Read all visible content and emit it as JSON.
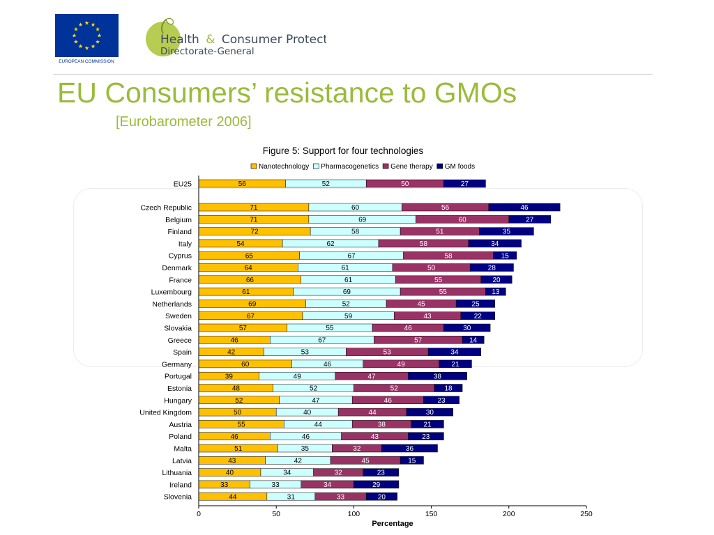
{
  "header": {
    "eu_logo_text": "EUROPEAN COMMISSION",
    "dg_line1_a": "Health",
    "dg_line1_b": "&",
    "dg_line1_c": "Consumer Protection",
    "dg_line2": "Directorate-General"
  },
  "slide": {
    "title": "EU Consumers’ resistance to GMOs",
    "subtitle": "[Eurobarometer 2006]"
  },
  "colors": {
    "title": "#9bbb3b",
    "nanotechnology": "#ffc000",
    "pharmacogenetics": "#ccffff",
    "gene_therapy": "#993366",
    "gm_foods": "#000080"
  },
  "chart_data": {
    "type": "bar",
    "orientation": "horizontal",
    "stacked": true,
    "title": "Figure 5: Support for four technologies",
    "xlabel": "Percentage",
    "ylabel": "",
    "xlim": [
      0,
      250
    ],
    "xticks": [
      0,
      50,
      100,
      150,
      200,
      250
    ],
    "grid": false,
    "legend_position": "top",
    "categories": [
      "EU25",
      "Czech Republic",
      "Belgium",
      "Finland",
      "Italy",
      "Cyprus",
      "Denmark",
      "France",
      "Luxembourg",
      "Netherlands",
      "Sweden",
      "Slovakia",
      "Greece",
      "Spain",
      "Germany",
      "Portugal",
      "Estonia",
      "Hungary",
      "United Kingdom",
      "Austria",
      "Poland",
      "Malta",
      "Latvia",
      "Lithuania",
      "Ireland",
      "Slovenia"
    ],
    "series": [
      {
        "name": "Nanotechnology",
        "values": [
          56,
          71,
          71,
          72,
          54,
          65,
          64,
          66,
          61,
          69,
          67,
          57,
          46,
          42,
          60,
          39,
          48,
          52,
          50,
          55,
          46,
          51,
          43,
          40,
          33,
          44
        ]
      },
      {
        "name": "Pharmacogenetics",
        "values": [
          52,
          60,
          69,
          58,
          62,
          67,
          61,
          61,
          69,
          52,
          59,
          55,
          67,
          53,
          46,
          49,
          52,
          47,
          40,
          44,
          46,
          35,
          42,
          34,
          33,
          31
        ]
      },
      {
        "name": "Gene therapy",
        "values": [
          50,
          56,
          60,
          51,
          58,
          58,
          50,
          55,
          55,
          45,
          43,
          46,
          57,
          53,
          49,
          47,
          52,
          46,
          44,
          38,
          43,
          32,
          45,
          32,
          34,
          33
        ]
      },
      {
        "name": "GM foods",
        "values": [
          27,
          46,
          27,
          35,
          34,
          15,
          28,
          20,
          13,
          25,
          22,
          30,
          14,
          34,
          21,
          38,
          18,
          23,
          30,
          21,
          23,
          36,
          15,
          23,
          29,
          20
        ]
      }
    ]
  }
}
